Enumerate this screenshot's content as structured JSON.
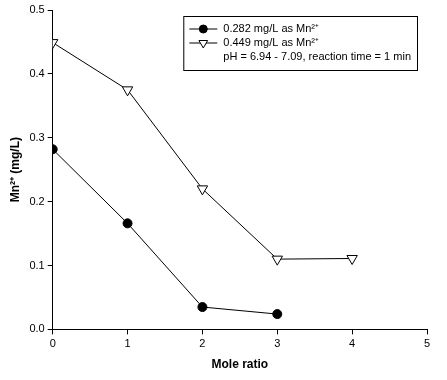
{
  "chart_data": {
    "type": "line",
    "x_label": "Mole ratio",
    "y_label": "Mn²⁺ (mg/L)",
    "annotation": "pH = 6.94 - 7.09, reaction time = 1 min",
    "series": [
      {
        "name": "0.282 mg/L as Mn²⁺",
        "color": "#000000",
        "marker": "filled_circle",
        "x": [
          0,
          1,
          2,
          3
        ],
        "values": [
          0.282,
          0.166,
          0.035,
          0.024
        ]
      },
      {
        "name": "0.449 mg/L as Mn²⁺",
        "color": "#000000",
        "marker": "open_triangle_down",
        "x": [
          0,
          1,
          2,
          3,
          4
        ],
        "values": [
          0.449,
          0.375,
          0.22,
          0.11,
          0.111
        ]
      }
    ],
    "xlim": [
      0,
      5
    ],
    "xticks": [
      0,
      1,
      2,
      3,
      4,
      5
    ],
    "ylim": [
      0,
      0.5
    ],
    "yticks": [
      {
        "value": 0,
        "label": "0.0"
      },
      0.1,
      0.2,
      0.3,
      0.4,
      0.5
    ],
    "grid": false,
    "legend": "upper right"
  }
}
